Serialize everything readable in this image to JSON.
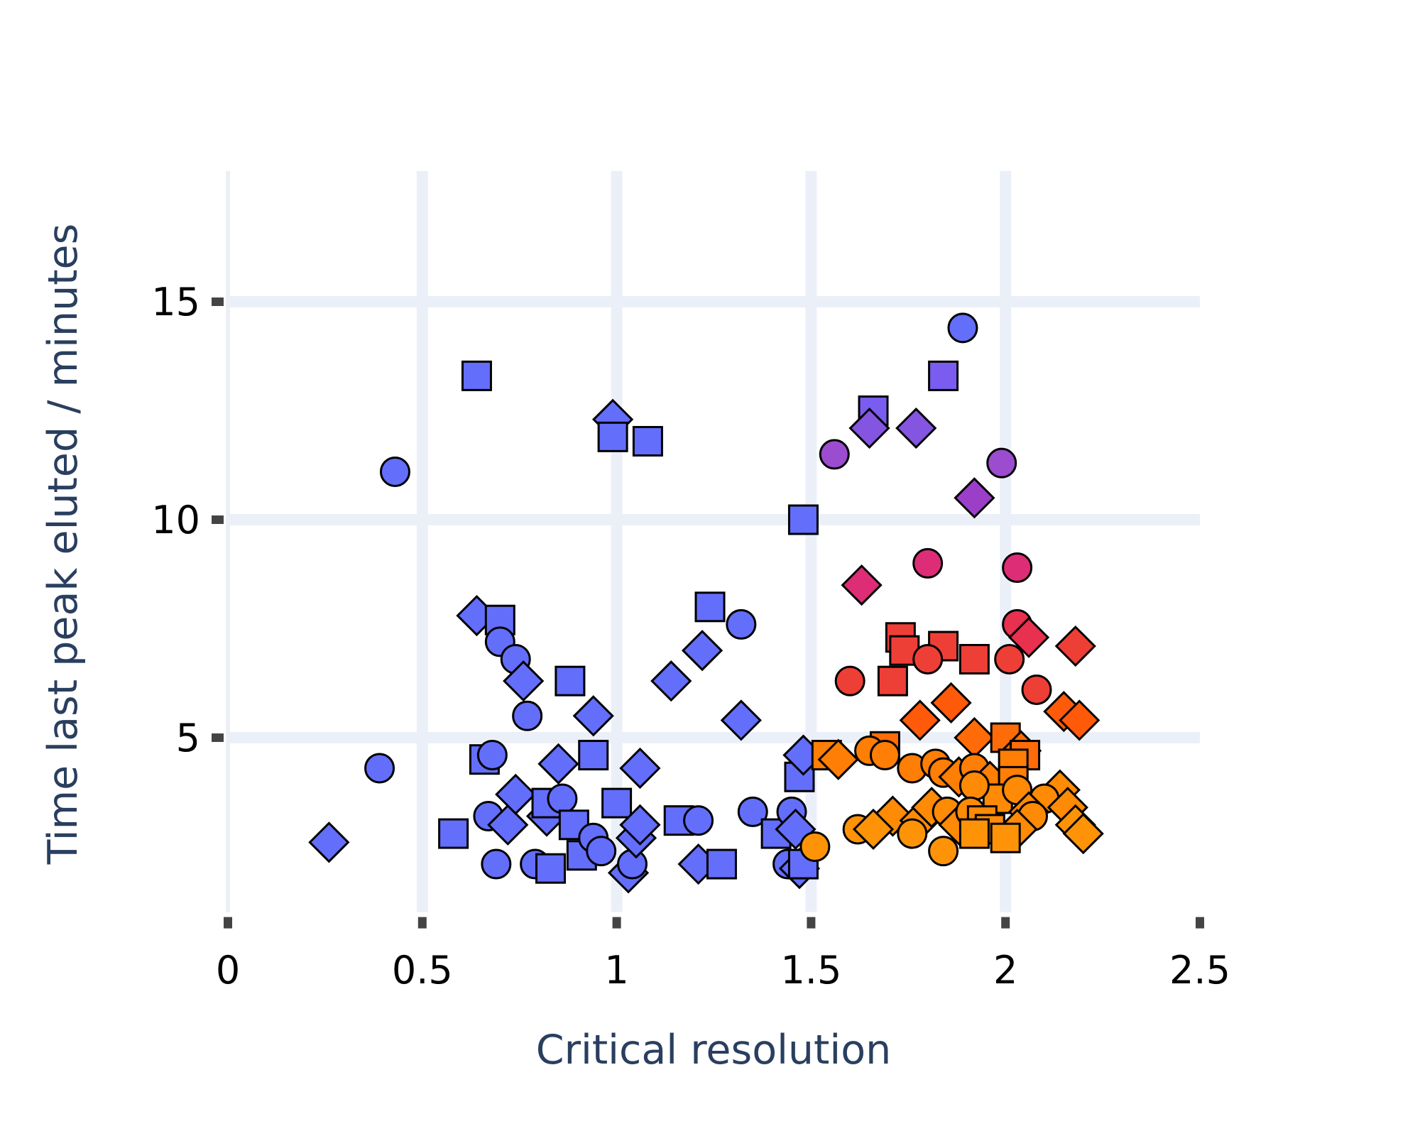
{
  "chart_data": {
    "type": "scatter",
    "xlabel": "Critical resolution",
    "ylabel": "Time last peak eluted / minutes",
    "xlim": [
      0,
      2.5
    ],
    "ylim": [
      1,
      18
    ],
    "xticks": [
      0,
      0.5,
      1,
      1.5,
      2,
      2.5
    ],
    "xtick_labels": [
      "0",
      "0.5",
      "1",
      "1.5",
      "2",
      "2.5"
    ],
    "yticks": [
      5,
      10,
      15
    ],
    "ytick_labels": [
      "5",
      "10",
      "15"
    ],
    "grid": true,
    "legend": "none",
    "marker_outline_color": "#000000",
    "grid_color": "#ebf0f8",
    "color_scale": {
      "description": "marker color follows a gradient from blue (low) through purple, magenta, red, to orange (high)",
      "colors": [
        "#636efa",
        "#7b5cf0",
        "#9b4ccf",
        "#de2d77",
        "#ee3f37",
        "#ff5a0a",
        "#ff7e05",
        "#ff9308"
      ]
    },
    "points": [
      {
        "x": 0.26,
        "y": 2.6,
        "shape": "diamond",
        "color": "#636efa"
      },
      {
        "x": 0.39,
        "y": 4.3,
        "shape": "circle",
        "color": "#636efa"
      },
      {
        "x": 0.43,
        "y": 11.1,
        "shape": "circle",
        "color": "#636efa"
      },
      {
        "x": 0.58,
        "y": 2.8,
        "shape": "square",
        "color": "#636efa"
      },
      {
        "x": 0.64,
        "y": 13.3,
        "shape": "square",
        "color": "#636efa"
      },
      {
        "x": 0.64,
        "y": 7.8,
        "shape": "diamond",
        "color": "#636efa"
      },
      {
        "x": 0.7,
        "y": 7.7,
        "shape": "square",
        "color": "#636efa"
      },
      {
        "x": 0.7,
        "y": 7.2,
        "shape": "circle",
        "color": "#636efa"
      },
      {
        "x": 0.74,
        "y": 6.8,
        "shape": "circle",
        "color": "#636efa"
      },
      {
        "x": 0.76,
        "y": 6.3,
        "shape": "diamond",
        "color": "#636efa"
      },
      {
        "x": 0.77,
        "y": 5.5,
        "shape": "circle",
        "color": "#636efa"
      },
      {
        "x": 0.66,
        "y": 4.5,
        "shape": "square",
        "color": "#636efa"
      },
      {
        "x": 0.68,
        "y": 4.6,
        "shape": "circle",
        "color": "#636efa"
      },
      {
        "x": 0.67,
        "y": 3.2,
        "shape": "circle",
        "color": "#636efa"
      },
      {
        "x": 0.72,
        "y": 3.0,
        "shape": "diamond",
        "color": "#636efa"
      },
      {
        "x": 0.74,
        "y": 3.7,
        "shape": "diamond",
        "color": "#636efa"
      },
      {
        "x": 0.69,
        "y": 2.1,
        "shape": "circle",
        "color": "#636efa"
      },
      {
        "x": 0.79,
        "y": 2.1,
        "shape": "circle",
        "color": "#636efa"
      },
      {
        "x": 0.83,
        "y": 2.0,
        "shape": "square",
        "color": "#636efa"
      },
      {
        "x": 0.82,
        "y": 3.2,
        "shape": "diamond",
        "color": "#636efa"
      },
      {
        "x": 0.82,
        "y": 3.5,
        "shape": "square",
        "color": "#636efa"
      },
      {
        "x": 0.86,
        "y": 3.6,
        "shape": "circle",
        "color": "#636efa"
      },
      {
        "x": 0.85,
        "y": 4.4,
        "shape": "diamond",
        "color": "#636efa"
      },
      {
        "x": 0.88,
        "y": 6.3,
        "shape": "square",
        "color": "#636efa"
      },
      {
        "x": 0.89,
        "y": 3.0,
        "shape": "square",
        "color": "#636efa"
      },
      {
        "x": 0.91,
        "y": 2.3,
        "shape": "square",
        "color": "#636efa"
      },
      {
        "x": 0.94,
        "y": 4.6,
        "shape": "square",
        "color": "#636efa"
      },
      {
        "x": 0.94,
        "y": 5.5,
        "shape": "diamond",
        "color": "#636efa"
      },
      {
        "x": 0.94,
        "y": 2.7,
        "shape": "circle",
        "color": "#636efa"
      },
      {
        "x": 0.96,
        "y": 2.4,
        "shape": "circle",
        "color": "#636efa"
      },
      {
        "x": 0.99,
        "y": 12.3,
        "shape": "diamond",
        "color": "#636efa"
      },
      {
        "x": 0.99,
        "y": 11.9,
        "shape": "square",
        "color": "#636efa"
      },
      {
        "x": 1.0,
        "y": 3.5,
        "shape": "square",
        "color": "#636efa"
      },
      {
        "x": 1.03,
        "y": 1.9,
        "shape": "diamond",
        "color": "#636efa"
      },
      {
        "x": 1.04,
        "y": 2.1,
        "shape": "circle",
        "color": "#636efa"
      },
      {
        "x": 1.05,
        "y": 2.7,
        "shape": "diamond",
        "color": "#636efa"
      },
      {
        "x": 1.06,
        "y": 3.0,
        "shape": "diamond",
        "color": "#636efa"
      },
      {
        "x": 1.06,
        "y": 4.3,
        "shape": "diamond",
        "color": "#636efa"
      },
      {
        "x": 1.08,
        "y": 11.8,
        "shape": "square",
        "color": "#636efa"
      },
      {
        "x": 1.14,
        "y": 6.3,
        "shape": "diamond",
        "color": "#636efa"
      },
      {
        "x": 1.16,
        "y": 3.1,
        "shape": "square",
        "color": "#636efa"
      },
      {
        "x": 1.21,
        "y": 3.1,
        "shape": "circle",
        "color": "#636efa"
      },
      {
        "x": 1.21,
        "y": 2.1,
        "shape": "diamond",
        "color": "#636efa"
      },
      {
        "x": 1.22,
        "y": 7.0,
        "shape": "diamond",
        "color": "#636efa"
      },
      {
        "x": 1.24,
        "y": 8.0,
        "shape": "square",
        "color": "#636efa"
      },
      {
        "x": 1.27,
        "y": 2.1,
        "shape": "square",
        "color": "#636efa"
      },
      {
        "x": 1.32,
        "y": 7.6,
        "shape": "circle",
        "color": "#636efa"
      },
      {
        "x": 1.32,
        "y": 5.4,
        "shape": "diamond",
        "color": "#636efa"
      },
      {
        "x": 1.35,
        "y": 3.3,
        "shape": "circle",
        "color": "#636efa"
      },
      {
        "x": 1.41,
        "y": 2.8,
        "shape": "square",
        "color": "#636efa"
      },
      {
        "x": 1.44,
        "y": 2.1,
        "shape": "circle",
        "color": "#636efa"
      },
      {
        "x": 1.45,
        "y": 3.3,
        "shape": "circle",
        "color": "#636efa"
      },
      {
        "x": 1.46,
        "y": 2.9,
        "shape": "diamond",
        "color": "#636efa"
      },
      {
        "x": 1.47,
        "y": 2.0,
        "shape": "diamond",
        "color": "#636efa"
      },
      {
        "x": 1.48,
        "y": 2.1,
        "shape": "square",
        "color": "#636efa"
      },
      {
        "x": 1.47,
        "y": 4.1,
        "shape": "square",
        "color": "#636efa"
      },
      {
        "x": 1.48,
        "y": 4.6,
        "shape": "diamond",
        "color": "#636efa"
      },
      {
        "x": 1.48,
        "y": 10.0,
        "shape": "square",
        "color": "#636efa"
      },
      {
        "x": 1.89,
        "y": 14.4,
        "shape": "circle",
        "color": "#636efa"
      },
      {
        "x": 1.84,
        "y": 13.3,
        "shape": "square",
        "color": "#7b5cf0"
      },
      {
        "x": 1.66,
        "y": 12.5,
        "shape": "square",
        "color": "#7b5cf0"
      },
      {
        "x": 1.65,
        "y": 12.1,
        "shape": "diamond",
        "color": "#8455e0"
      },
      {
        "x": 1.77,
        "y": 12.1,
        "shape": "diamond",
        "color": "#8455e0"
      },
      {
        "x": 1.56,
        "y": 11.5,
        "shape": "circle",
        "color": "#9b4ccf"
      },
      {
        "x": 1.99,
        "y": 11.3,
        "shape": "circle",
        "color": "#9b4ccf"
      },
      {
        "x": 1.92,
        "y": 10.5,
        "shape": "diamond",
        "color": "#9b3fc9"
      },
      {
        "x": 1.8,
        "y": 9.0,
        "shape": "circle",
        "color": "#de2d77"
      },
      {
        "x": 2.03,
        "y": 8.9,
        "shape": "circle",
        "color": "#de2d77"
      },
      {
        "x": 1.63,
        "y": 8.5,
        "shape": "diamond",
        "color": "#de2d77"
      },
      {
        "x": 2.03,
        "y": 7.6,
        "shape": "circle",
        "color": "#e8304f"
      },
      {
        "x": 2.06,
        "y": 7.3,
        "shape": "diamond",
        "color": "#e8304f"
      },
      {
        "x": 2.18,
        "y": 7.1,
        "shape": "diamond",
        "color": "#ee3f37"
      },
      {
        "x": 1.73,
        "y": 7.3,
        "shape": "square",
        "color": "#ee3f37"
      },
      {
        "x": 1.74,
        "y": 7.0,
        "shape": "square",
        "color": "#ee3f37"
      },
      {
        "x": 1.84,
        "y": 7.1,
        "shape": "square",
        "color": "#ee3f37"
      },
      {
        "x": 1.8,
        "y": 6.8,
        "shape": "circle",
        "color": "#ee3f37"
      },
      {
        "x": 1.92,
        "y": 6.8,
        "shape": "square",
        "color": "#ee3f37"
      },
      {
        "x": 2.01,
        "y": 6.8,
        "shape": "circle",
        "color": "#ee3f37"
      },
      {
        "x": 1.6,
        "y": 6.3,
        "shape": "circle",
        "color": "#ee3f37"
      },
      {
        "x": 1.71,
        "y": 6.3,
        "shape": "square",
        "color": "#ee3f37"
      },
      {
        "x": 2.08,
        "y": 6.1,
        "shape": "circle",
        "color": "#ee3f37"
      },
      {
        "x": 1.86,
        "y": 5.8,
        "shape": "diamond",
        "color": "#ff5a0a"
      },
      {
        "x": 1.78,
        "y": 5.4,
        "shape": "diamond",
        "color": "#ff5a0a"
      },
      {
        "x": 2.15,
        "y": 5.6,
        "shape": "diamond",
        "color": "#ff5a0a"
      },
      {
        "x": 2.19,
        "y": 5.4,
        "shape": "diamond",
        "color": "#ff5a0a"
      },
      {
        "x": 1.92,
        "y": 5.0,
        "shape": "diamond",
        "color": "#ff6b08"
      },
      {
        "x": 2.0,
        "y": 5.0,
        "shape": "square",
        "color": "#ff6b08"
      },
      {
        "x": 2.04,
        "y": 4.7,
        "shape": "diamond",
        "color": "#ff6b08"
      },
      {
        "x": 2.05,
        "y": 4.6,
        "shape": "square",
        "color": "#ff6b08"
      },
      {
        "x": 1.69,
        "y": 4.8,
        "shape": "square",
        "color": "#ff6b08"
      },
      {
        "x": 1.54,
        "y": 4.6,
        "shape": "square",
        "color": "#ff7e05"
      },
      {
        "x": 1.57,
        "y": 4.5,
        "shape": "diamond",
        "color": "#ff7e05"
      },
      {
        "x": 1.65,
        "y": 4.7,
        "shape": "circle",
        "color": "#ff7e05"
      },
      {
        "x": 1.69,
        "y": 4.6,
        "shape": "circle",
        "color": "#ff7e05"
      },
      {
        "x": 1.76,
        "y": 4.3,
        "shape": "circle",
        "color": "#ff7e05"
      },
      {
        "x": 1.82,
        "y": 4.4,
        "shape": "circle",
        "color": "#ff7e05"
      },
      {
        "x": 1.84,
        "y": 4.2,
        "shape": "circle",
        "color": "#ff7e05"
      },
      {
        "x": 1.88,
        "y": 4.1,
        "shape": "diamond",
        "color": "#ff7e05"
      },
      {
        "x": 1.92,
        "y": 4.3,
        "shape": "circle",
        "color": "#ff7e05"
      },
      {
        "x": 1.96,
        "y": 4.0,
        "shape": "diamond",
        "color": "#ff7e05"
      },
      {
        "x": 2.02,
        "y": 4.4,
        "shape": "square",
        "color": "#ff7e05"
      },
      {
        "x": 2.02,
        "y": 4.0,
        "shape": "square",
        "color": "#ff7e05"
      },
      {
        "x": 1.98,
        "y": 3.6,
        "shape": "square",
        "color": "#ff8a05"
      },
      {
        "x": 1.92,
        "y": 3.9,
        "shape": "circle",
        "color": "#ff8a05"
      },
      {
        "x": 2.03,
        "y": 3.8,
        "shape": "circle",
        "color": "#ff8a05"
      },
      {
        "x": 2.14,
        "y": 3.8,
        "shape": "diamond",
        "color": "#ff8a05"
      },
      {
        "x": 2.1,
        "y": 3.6,
        "shape": "circle",
        "color": "#ff8a05"
      },
      {
        "x": 2.16,
        "y": 3.4,
        "shape": "diamond",
        "color": "#ff8a05"
      },
      {
        "x": 2.06,
        "y": 3.3,
        "shape": "diamond",
        "color": "#ff8a05"
      },
      {
        "x": 2.07,
        "y": 3.2,
        "shape": "circle",
        "color": "#ff8a05"
      },
      {
        "x": 1.71,
        "y": 3.2,
        "shape": "diamond",
        "color": "#ff8a05"
      },
      {
        "x": 1.78,
        "y": 3.1,
        "shape": "diamond",
        "color": "#ff8a05"
      },
      {
        "x": 1.81,
        "y": 3.4,
        "shape": "diamond",
        "color": "#ff8a05"
      },
      {
        "x": 1.85,
        "y": 3.3,
        "shape": "circle",
        "color": "#ff8a05"
      },
      {
        "x": 1.88,
        "y": 3.0,
        "shape": "diamond",
        "color": "#ff8a05"
      },
      {
        "x": 1.91,
        "y": 3.3,
        "shape": "circle",
        "color": "#ff8a05"
      },
      {
        "x": 1.94,
        "y": 3.1,
        "shape": "square",
        "color": "#ff8a05"
      },
      {
        "x": 1.96,
        "y": 2.9,
        "shape": "square",
        "color": "#ff8a05"
      },
      {
        "x": 2.03,
        "y": 2.9,
        "shape": "diamond",
        "color": "#ff8a05"
      },
      {
        "x": 2.0,
        "y": 2.7,
        "shape": "square",
        "color": "#ff9308"
      },
      {
        "x": 1.92,
        "y": 2.8,
        "shape": "square",
        "color": "#ff9308"
      },
      {
        "x": 2.18,
        "y": 3.0,
        "shape": "diamond",
        "color": "#ff9308"
      },
      {
        "x": 2.2,
        "y": 2.8,
        "shape": "diamond",
        "color": "#ff9308"
      },
      {
        "x": 1.62,
        "y": 2.9,
        "shape": "circle",
        "color": "#ff9308"
      },
      {
        "x": 1.66,
        "y": 2.9,
        "shape": "diamond",
        "color": "#ff9308"
      },
      {
        "x": 1.76,
        "y": 2.8,
        "shape": "circle",
        "color": "#ff9308"
      },
      {
        "x": 1.84,
        "y": 2.4,
        "shape": "circle",
        "color": "#ff9308"
      },
      {
        "x": 1.51,
        "y": 2.5,
        "shape": "circle",
        "color": "#ff9308"
      }
    ]
  }
}
